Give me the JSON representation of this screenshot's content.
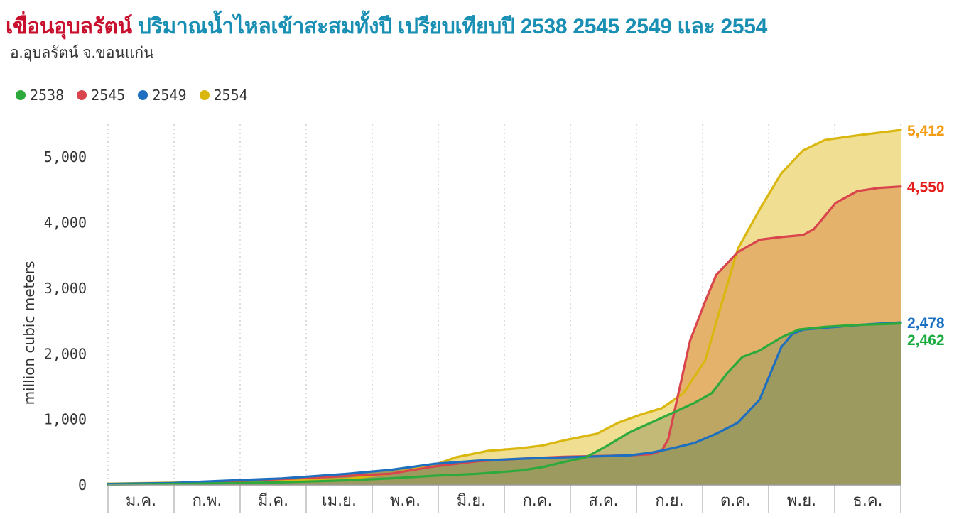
{
  "header": {
    "title_dam": "เขื่อนอุบลรัตน์",
    "title_rest": "ปริมาณน้ำไหลเข้าสะสมทั้งปี เปรียบเทียบปี 2538 2545 2549 และ 2554",
    "subtitle": "อ.อุบลรัตน์ จ.ขอนแก่น"
  },
  "chart_data": {
    "type": "area",
    "ylabel": "million cubic meters",
    "xlabel": "",
    "ylim": [
      0,
      5500
    ],
    "y_ticks": [
      0,
      1000,
      2000,
      3000,
      4000,
      5000
    ],
    "y_tick_labels": [
      "0",
      "1,000",
      "2,000",
      "3,000",
      "4,000",
      "5,000"
    ],
    "xlim": [
      0,
      365
    ],
    "month_labels": [
      "ม.ค.",
      "ก.พ.",
      "มี.ค.",
      "เม.ย.",
      "พ.ค.",
      "มิ.ย.",
      "ก.ค.",
      "ส.ค.",
      "ก.ย.",
      "ต.ค.",
      "พ.ย.",
      "ธ.ค."
    ],
    "legend_position": "top-left",
    "grid": "vertical dotted",
    "series": [
      {
        "name": "2554",
        "color": "#d9b70f",
        "fill": "#f0df93",
        "end_label": "5,412",
        "end_label_color": "#f39c12",
        "points": [
          [
            0,
            20
          ],
          [
            20,
            30
          ],
          [
            50,
            45
          ],
          [
            80,
            60
          ],
          [
            110,
            90
          ],
          [
            130,
            170
          ],
          [
            150,
            300
          ],
          [
            160,
            420
          ],
          [
            175,
            520
          ],
          [
            190,
            560
          ],
          [
            200,
            600
          ],
          [
            210,
            680
          ],
          [
            225,
            780
          ],
          [
            235,
            950
          ],
          [
            245,
            1070
          ],
          [
            255,
            1170
          ],
          [
            265,
            1400
          ],
          [
            275,
            1900
          ],
          [
            282,
            2700
          ],
          [
            290,
            3600
          ],
          [
            300,
            4200
          ],
          [
            310,
            4750
          ],
          [
            320,
            5100
          ],
          [
            330,
            5260
          ],
          [
            345,
            5330
          ],
          [
            365,
            5412
          ]
        ]
      },
      {
        "name": "2545",
        "color": "#d9454d",
        "fill": "#e5b26b",
        "end_label": "4,550",
        "end_label_color": "#e31d1a",
        "points": [
          [
            0,
            10
          ],
          [
            30,
            25
          ],
          [
            60,
            60
          ],
          [
            100,
            120
          ],
          [
            130,
            170
          ],
          [
            150,
            280
          ],
          [
            170,
            360
          ],
          [
            190,
            400
          ],
          [
            210,
            430
          ],
          [
            240,
            450
          ],
          [
            250,
            470
          ],
          [
            255,
            520
          ],
          [
            258,
            700
          ],
          [
            262,
            1300
          ],
          [
            268,
            2200
          ],
          [
            275,
            2800
          ],
          [
            280,
            3200
          ],
          [
            290,
            3550
          ],
          [
            300,
            3740
          ],
          [
            310,
            3780
          ],
          [
            320,
            3810
          ],
          [
            325,
            3900
          ],
          [
            335,
            4300
          ],
          [
            345,
            4480
          ],
          [
            355,
            4530
          ],
          [
            365,
            4550
          ]
        ]
      },
      {
        "name": "2549",
        "color": "#1e6fbf",
        "fill": "#9c9a5e",
        "end_label": "2,478",
        "end_label_color": "#1a6fc2",
        "points": [
          [
            0,
            15
          ],
          [
            30,
            30
          ],
          [
            50,
            60
          ],
          [
            80,
            100
          ],
          [
            110,
            170
          ],
          [
            130,
            230
          ],
          [
            150,
            320
          ],
          [
            170,
            370
          ],
          [
            190,
            400
          ],
          [
            210,
            420
          ],
          [
            240,
            450
          ],
          [
            250,
            490
          ],
          [
            260,
            560
          ],
          [
            270,
            640
          ],
          [
            280,
            780
          ],
          [
            290,
            950
          ],
          [
            300,
            1300
          ],
          [
            305,
            1700
          ],
          [
            310,
            2100
          ],
          [
            315,
            2300
          ],
          [
            320,
            2370
          ],
          [
            335,
            2410
          ],
          [
            350,
            2450
          ],
          [
            365,
            2478
          ]
        ]
      },
      {
        "name": "2538",
        "color": "#2eaa3c",
        "fill": "#9c9a5e",
        "end_label": "2,462",
        "end_label_color": "#1aab3f",
        "points": [
          [
            0,
            5
          ],
          [
            40,
            20
          ],
          [
            80,
            40
          ],
          [
            110,
            70
          ],
          [
            130,
            100
          ],
          [
            150,
            140
          ],
          [
            170,
            170
          ],
          [
            190,
            220
          ],
          [
            200,
            270
          ],
          [
            210,
            350
          ],
          [
            220,
            420
          ],
          [
            230,
            600
          ],
          [
            240,
            800
          ],
          [
            250,
            950
          ],
          [
            260,
            1100
          ],
          [
            270,
            1250
          ],
          [
            278,
            1400
          ],
          [
            285,
            1700
          ],
          [
            292,
            1950
          ],
          [
            300,
            2050
          ],
          [
            310,
            2250
          ],
          [
            318,
            2370
          ],
          [
            330,
            2410
          ],
          [
            345,
            2440
          ],
          [
            365,
            2462
          ]
        ]
      }
    ]
  }
}
